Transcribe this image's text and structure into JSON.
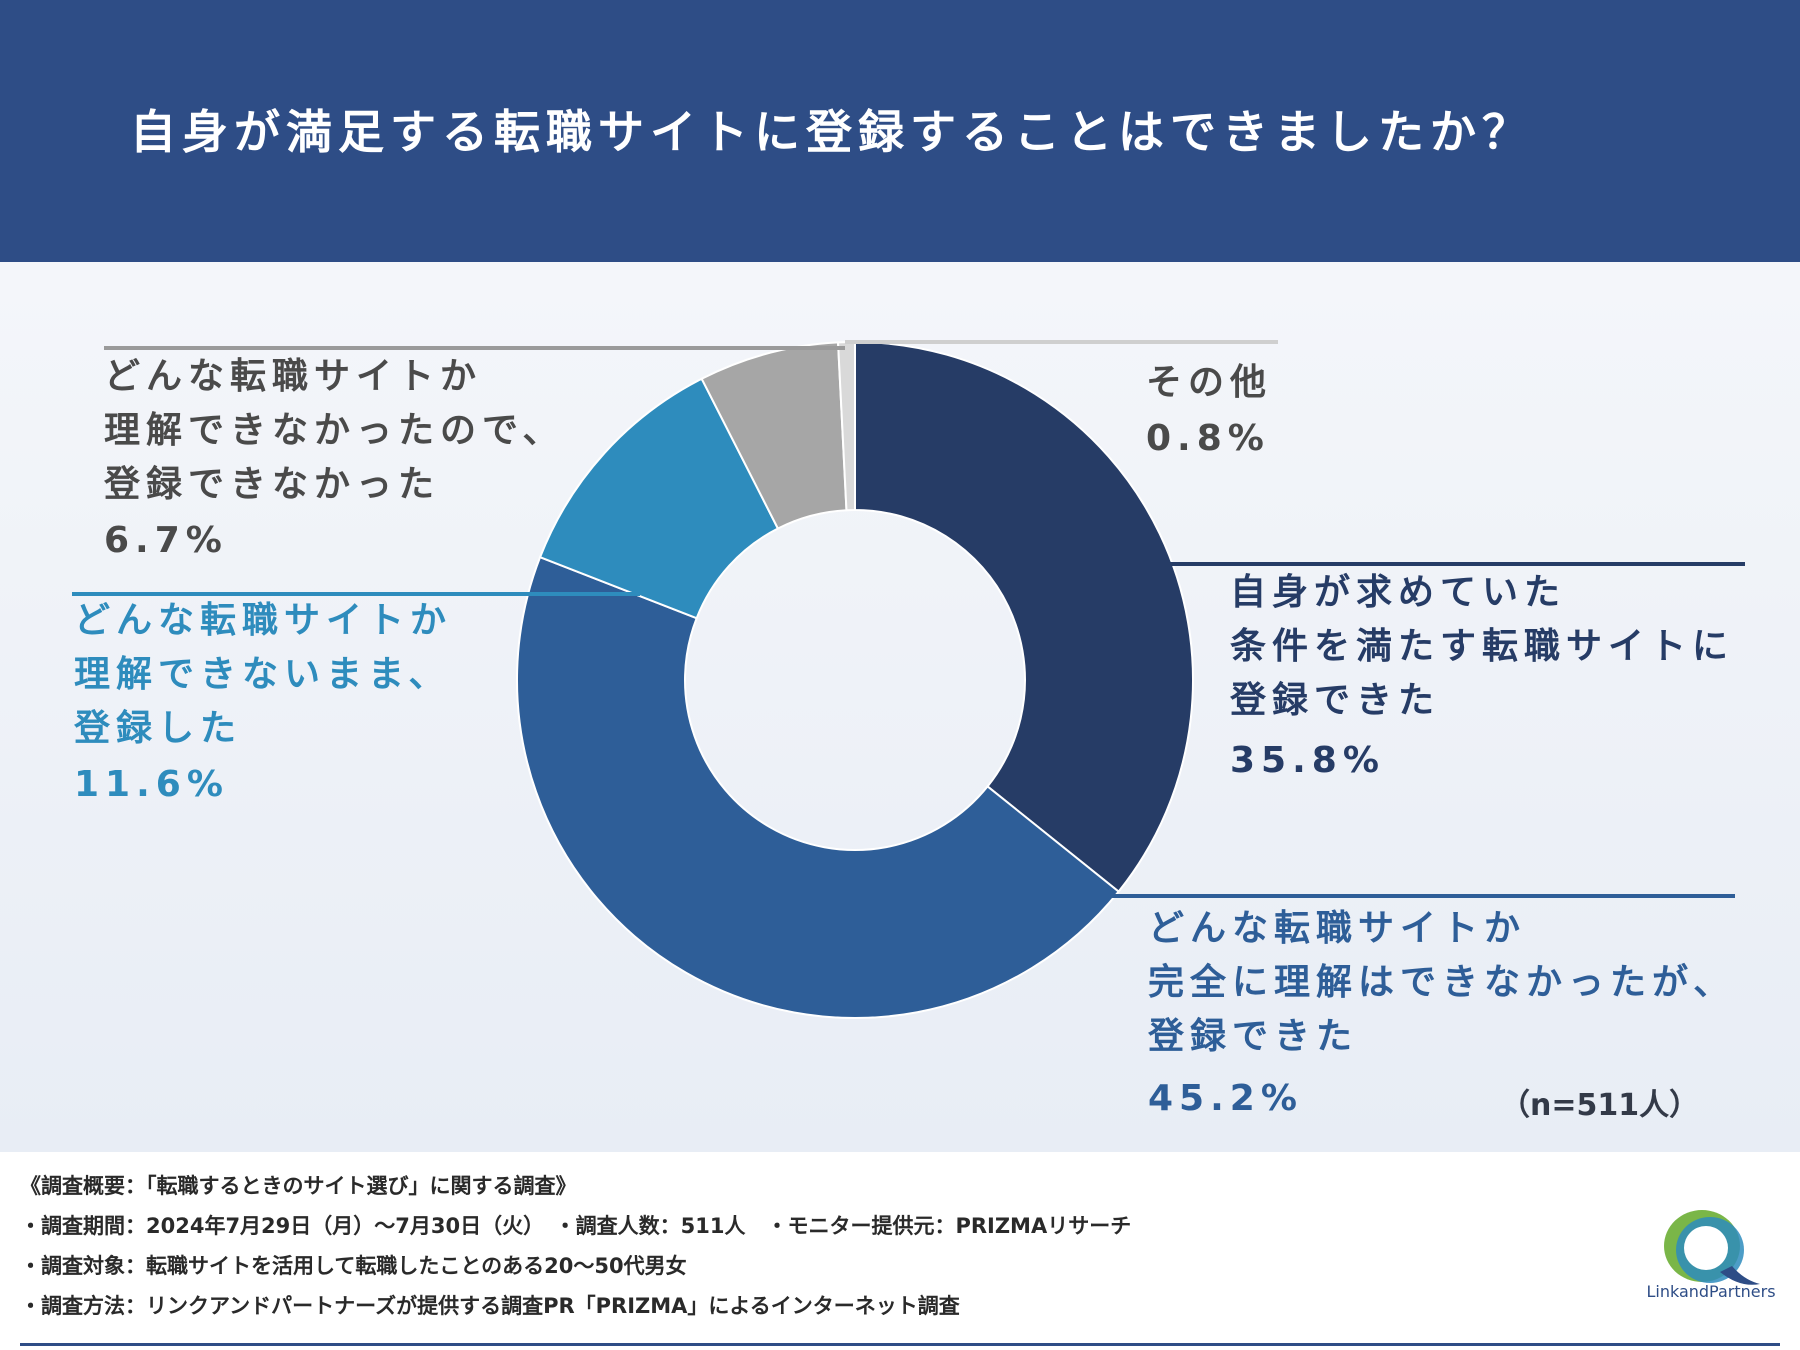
{
  "header": {
    "title": "自身が満足する転職サイトに登録することはできましたか？"
  },
  "chart_data": {
    "type": "pie",
    "title": "自身が満足する転職サイトに登録することはできましたか？",
    "donut": true,
    "slices": [
      {
        "label_lines": [
          "自身が求めていた",
          "条件を満たす転職サイトに",
          "登録できた"
        ],
        "value": 35.8,
        "value_label": "35.8%",
        "color": "#263c66"
      },
      {
        "label_lines": [
          "どんな転職サイトか",
          "完全に理解はできなかったが、",
          "登録できた"
        ],
        "value": 45.2,
        "value_label": "45.2%",
        "color": "#2e5e98"
      },
      {
        "label_lines": [
          "どんな転職サイトか",
          "理解できないまま、",
          "登録した"
        ],
        "value": 11.6,
        "value_label": "11.6%",
        "color": "#2e8cbd"
      },
      {
        "label_lines": [
          "どんな転職サイトか",
          "理解できなかったので、",
          "登録できなかった"
        ],
        "value": 6.7,
        "value_label": "6.7%",
        "color": "#a6a6a6"
      },
      {
        "label_lines": [
          "その他"
        ],
        "value": 0.8,
        "value_label": "0.8%",
        "color": "#d9d9d9"
      }
    ],
    "sample_note": "（n=511人）"
  },
  "footer": {
    "lines": [
      "《調査概要：「転職するときのサイト選び」に関する調査》",
      "・調査期間：2024年7月29日（月）〜7月30日（火）　・調査人数：511人　・モニター提供元：PRIZMAリサーチ",
      "・調査対象：転職サイトを活用して転職したことのある20〜50代男女",
      "・調査方法：リンクアンドパートナーズが提供する調査PR「PRIZMA」によるインターネット調査"
    ],
    "logo_text": "LinkandPartners",
    "colors": {
      "accent": "#2e4d86",
      "logo_green": "#7ab648",
      "logo_blue": "#2e8cbd"
    }
  }
}
